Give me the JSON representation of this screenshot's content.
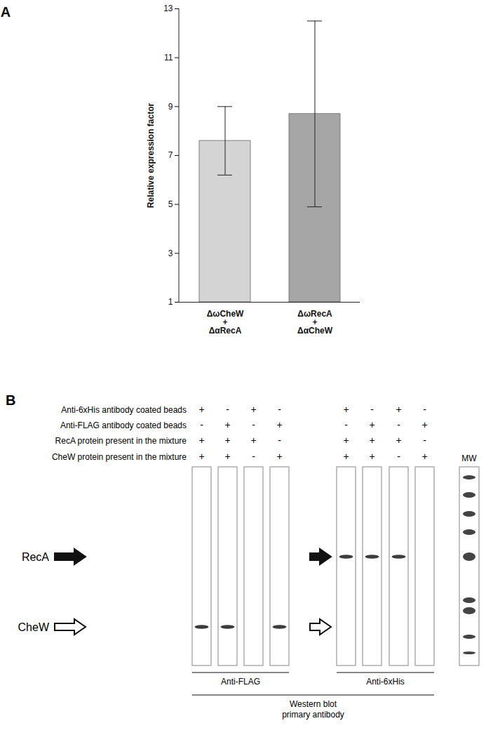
{
  "chart_data": {
    "type": "bar",
    "panel_label": "A",
    "categories": [
      "ΔωCheW\n+\nΔαRecA",
      "ΔωRecA\n+\nΔαCheW"
    ],
    "values": [
      7.6,
      8.7
    ],
    "error_low": [
      6.2,
      4.9
    ],
    "error_high": [
      9.0,
      12.5
    ],
    "colors": [
      "#d4d4d4",
      "#a6a6a6"
    ],
    "y_label": "Relative expression factor",
    "ylim": [
      1,
      13
    ],
    "yticks": [
      1,
      3,
      5,
      7,
      9,
      11,
      13
    ]
  },
  "panel_b": {
    "panel_label": "B",
    "conditions": [
      {
        "label": "Anti-6xHis antibody coated beads",
        "signs": [
          "+",
          "-",
          "+",
          "-",
          "+",
          "-",
          "+",
          "-"
        ]
      },
      {
        "label": "Anti-FLAG antibody coated beads",
        "signs": [
          "-",
          "+",
          "-",
          "+",
          "-",
          "+",
          "-",
          "+"
        ]
      },
      {
        "label": "RecA protein present in the mixture",
        "signs": [
          "+",
          "+",
          "+",
          "-",
          "+",
          "+",
          "+",
          "-"
        ]
      },
      {
        "label": "CheW protein present in the mixture",
        "signs": [
          "+",
          "+",
          "-",
          "+",
          "+",
          "+",
          "-",
          "+"
        ]
      }
    ],
    "proteins": [
      "RecA",
      "CheW"
    ],
    "blots": [
      {
        "antibody": "Anti-FLAG",
        "bands": {
          "RecA": [
            false,
            false,
            false,
            false
          ],
          "CheW": [
            true,
            true,
            false,
            true
          ]
        }
      },
      {
        "antibody": "Anti-6xHis",
        "bands": {
          "RecA": [
            true,
            true,
            true,
            false
          ],
          "CheW": [
            false,
            false,
            false,
            false
          ]
        }
      }
    ],
    "marker_lane": "MW",
    "footer": [
      "Western blot",
      "primary antibody"
    ]
  }
}
